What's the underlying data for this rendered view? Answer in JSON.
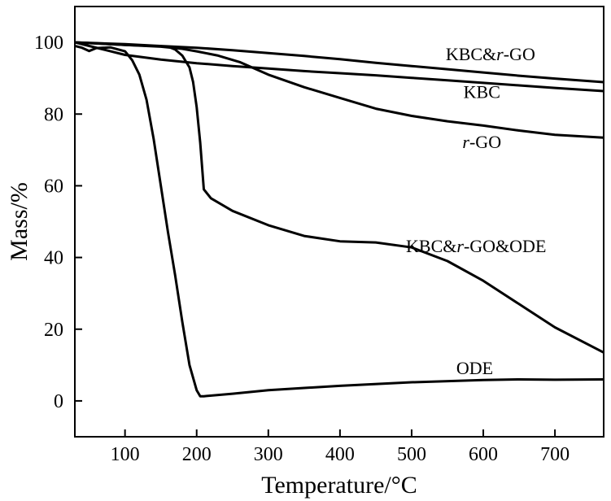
{
  "chart_data": {
    "type": "line",
    "title": "",
    "xlabel": "Temperature/°C",
    "ylabel": "Mass/%",
    "xlim": [
      30,
      768
    ],
    "ylim": [
      -10,
      110
    ],
    "xticks": [
      100,
      200,
      300,
      400,
      500,
      600,
      700
    ],
    "yticks": [
      0,
      20,
      40,
      60,
      80,
      100
    ],
    "grid": false,
    "legend": "inline labels near curves",
    "series": [
      {
        "name": "KBC&r-GO",
        "label_parts": [
          "KBC&",
          "r",
          "-GO"
        ],
        "label_at": [
          610,
          95
        ],
        "x": [
          30,
          60,
          100,
          140,
          200,
          250,
          300,
          350,
          400,
          450,
          500,
          550,
          600,
          650,
          700,
          768
        ],
        "y": [
          100,
          99.8,
          99.5,
          99.1,
          98.5,
          97.8,
          97.0,
          96.2,
          95.3,
          94.3,
          93.4,
          92.5,
          91.6,
          90.7,
          89.9,
          88.9
        ]
      },
      {
        "name": "KBC",
        "label_parts": [
          "KBC"
        ],
        "label_at": [
          598,
          84.5
        ],
        "x": [
          30,
          50,
          80,
          100,
          150,
          200,
          250,
          300,
          350,
          400,
          450,
          500,
          550,
          600,
          650,
          700,
          768
        ],
        "y": [
          100,
          99,
          97.5,
          96.5,
          95.2,
          94.2,
          93.4,
          92.7,
          92.0,
          91.4,
          90.8,
          90.1,
          89.4,
          88.7,
          88.0,
          87.3,
          86.4
        ]
      },
      {
        "name": "r-GO",
        "label_parts": [
          "r",
          "-GO"
        ],
        "label_at": [
          598,
          70.5
        ],
        "x": [
          30,
          60,
          100,
          150,
          180,
          200,
          230,
          260,
          300,
          350,
          400,
          450,
          500,
          550,
          600,
          650,
          700,
          768
        ],
        "y": [
          100,
          99.7,
          99.3,
          98.8,
          98.2,
          97.5,
          96.3,
          94.5,
          91.0,
          87.5,
          84.5,
          81.5,
          79.5,
          78.0,
          76.8,
          75.4,
          74.2,
          73.4
        ]
      },
      {
        "name": "KBC&r-GO&ODE",
        "label_parts": [
          "KBC&",
          "r",
          "-GO&ODE"
        ],
        "label_at": [
          590,
          41.5
        ],
        "x": [
          30,
          60,
          100,
          140,
          160,
          170,
          180,
          190,
          195,
          200,
          205,
          210,
          220,
          250,
          300,
          350,
          400,
          450,
          500,
          550,
          600,
          650,
          700,
          768
        ],
        "y": [
          100,
          99.7,
          99.3,
          99,
          98.8,
          98,
          96.3,
          93,
          89,
          82,
          72,
          59,
          56.5,
          53,
          49,
          46,
          44.5,
          44.2,
          42.8,
          39,
          33.5,
          27,
          20.5,
          13.5
        ]
      },
      {
        "name": "ODE",
        "label_parts": [
          "ODE"
        ],
        "label_at": [
          588,
          7.5
        ],
        "x": [
          30,
          40,
          50,
          60,
          80,
          100,
          110,
          120,
          130,
          140,
          150,
          160,
          170,
          180,
          190,
          200,
          205,
          210,
          250,
          300,
          400,
          500,
          600,
          650,
          700,
          768
        ],
        "y": [
          99,
          98.5,
          97.6,
          98.4,
          98.6,
          97.5,
          95,
          91,
          84,
          73,
          60,
          47,
          35,
          22,
          10,
          3,
          1.3,
          1.3,
          2,
          3,
          4.2,
          5.2,
          5.8,
          6.0,
          5.9,
          6.0
        ]
      }
    ]
  }
}
